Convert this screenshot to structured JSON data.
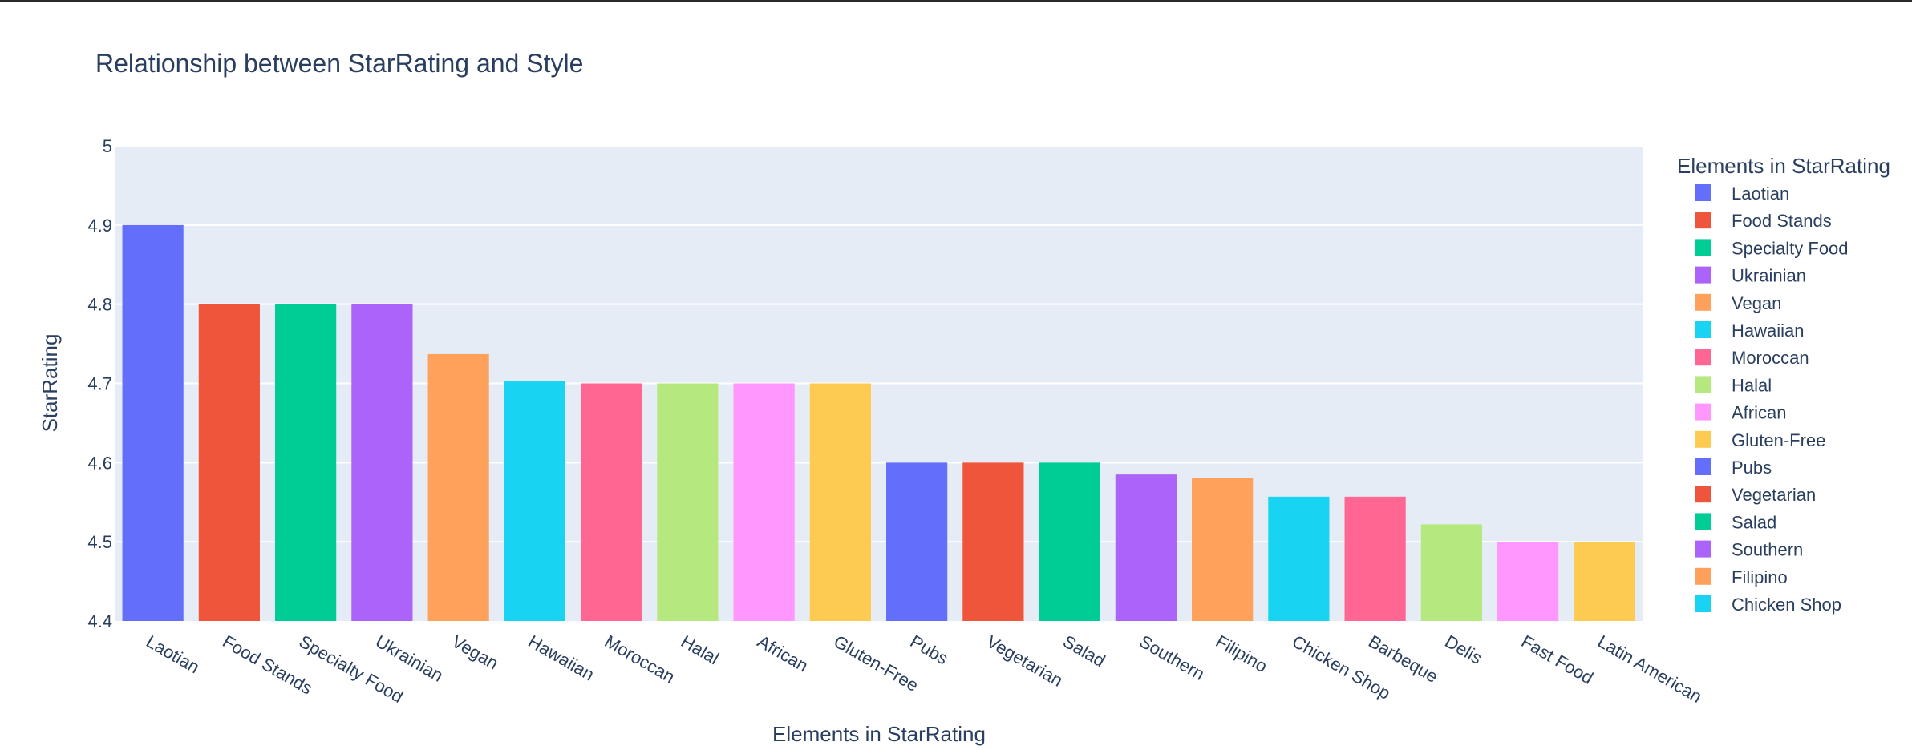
{
  "chart_data": {
    "type": "bar",
    "title": "Relationship between StarRating and Style",
    "xlabel": "Elements in StarRating",
    "ylabel": "StarRating",
    "ylim": [
      4.4,
      5.0
    ],
    "yticks": [
      "4.4",
      "4.5",
      "4.6",
      "4.7",
      "4.8",
      "4.9",
      "5"
    ],
    "legend_title": "Elements in StarRating",
    "legend_position": "right",
    "grid": true,
    "plot_background": "#e5ecf6",
    "categories": [
      "Laotian",
      "Food Stands",
      "Specialty Food",
      "Ukrainian",
      "Vegan",
      "Hawaiian",
      "Moroccan",
      "Halal",
      "African",
      "Gluten-Free",
      "Pubs",
      "Vegetarian",
      "Salad",
      "Southern",
      "Filipino",
      "Chicken Shop",
      "Barbeque",
      "Delis",
      "Fast Food",
      "Latin American"
    ],
    "values": [
      4.9,
      4.8,
      4.8,
      4.8,
      4.737,
      4.703,
      4.7,
      4.7,
      4.7,
      4.7,
      4.6,
      4.6,
      4.6,
      4.585,
      4.581,
      4.557,
      4.557,
      4.522,
      4.5,
      4.5
    ],
    "colors": [
      "#636efa",
      "#ef553b",
      "#00cc96",
      "#ab63fa",
      "#ffa15a",
      "#19d3f3",
      "#ff6692",
      "#b6e880",
      "#ff97ff",
      "#fecb52"
    ],
    "legend_entries": [
      "Laotian",
      "Food Stands",
      "Specialty Food",
      "Ukrainian",
      "Vegan",
      "Hawaiian",
      "Moroccan",
      "Halal",
      "African",
      "Gluten-Free",
      "Pubs",
      "Vegetarian",
      "Salad",
      "Southern",
      "Filipino",
      "Chicken Shop"
    ]
  }
}
